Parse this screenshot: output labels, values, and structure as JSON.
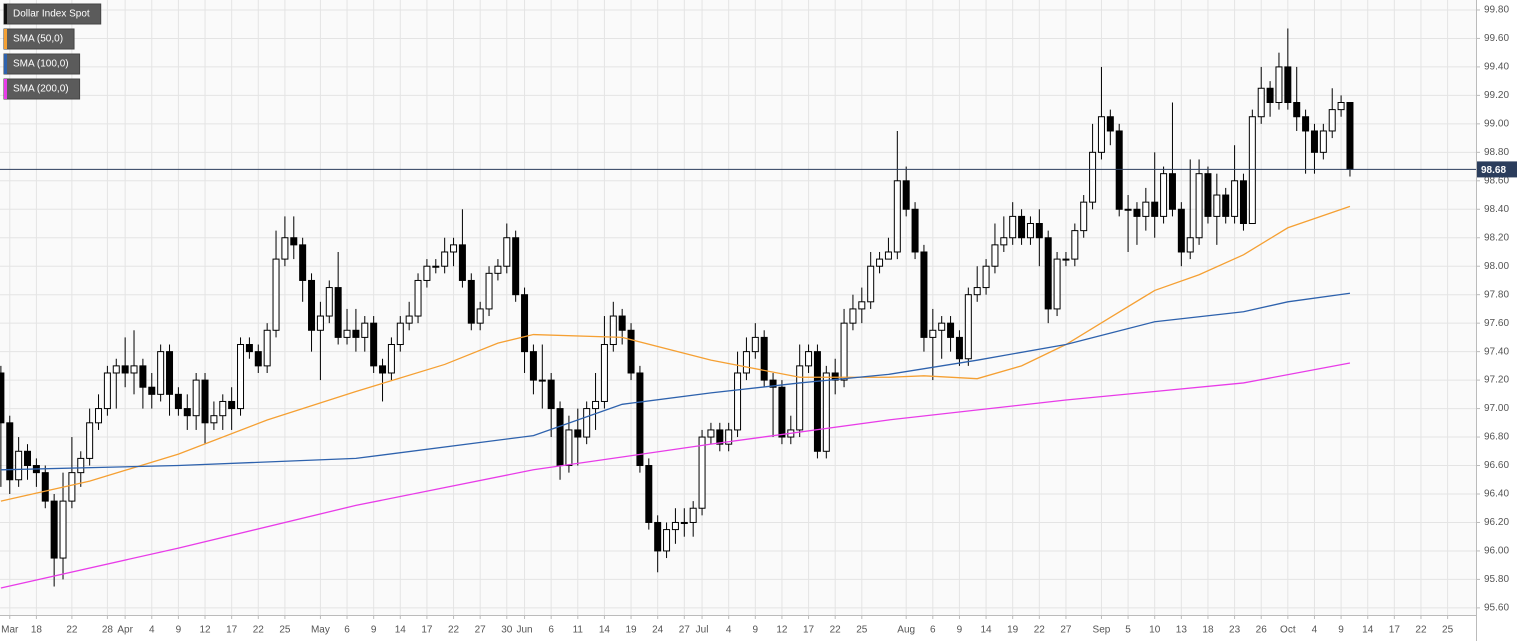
{
  "chart_data": {
    "type": "candlestick",
    "series": [
      {
        "name": "Dollar Index Spot",
        "color": "#000000",
        "open": [
          97.25,
          96.9,
          96.5,
          96.7,
          96.6,
          96.55,
          96.35,
          95.95,
          96.35,
          96.55,
          96.65,
          96.9,
          97.0,
          97.25,
          97.3,
          97.25,
          97.3,
          97.15,
          97.1,
          97.4,
          97.1,
          97.0,
          96.95,
          97.2,
          96.9,
          96.95,
          97.05,
          97.0,
          97.45,
          97.4,
          97.3,
          97.55,
          98.05,
          98.2,
          98.15,
          97.9,
          97.55,
          97.65,
          97.85,
          97.5,
          97.55,
          97.5,
          97.6,
          97.3,
          97.25,
          97.45,
          97.6,
          97.65,
          97.9,
          98.0,
          98.0,
          98.1,
          98.15,
          97.9,
          97.6,
          97.7,
          97.95,
          98.0,
          98.2,
          97.8,
          97.4,
          97.2,
          97.2,
          97.0,
          96.6,
          96.85,
          96.8,
          97.0,
          97.05,
          97.45,
          97.65,
          97.55,
          97.25,
          96.6,
          96.2,
          96.0,
          96.15,
          96.2,
          96.2,
          96.3,
          96.8,
          96.85,
          96.75,
          96.85,
          97.25,
          97.4,
          97.5,
          97.2,
          97.15,
          96.8,
          96.85,
          97.3,
          97.4,
          96.7,
          97.25,
          97.2,
          97.6,
          97.7,
          97.75,
          98.0,
          98.05,
          98.1,
          98.6,
          98.4,
          98.1,
          97.5,
          97.55,
          97.6,
          97.5,
          97.35,
          97.8,
          97.85,
          98.0,
          98.15,
          98.2,
          98.35,
          98.2,
          98.3,
          98.2,
          97.7,
          98.05,
          98.05,
          98.25,
          98.45,
          98.8,
          99.05,
          98.95,
          98.4,
          98.4,
          98.35,
          98.45,
          98.35,
          98.65,
          98.4,
          98.1,
          98.2,
          98.65,
          98.35,
          98.5,
          98.35,
          98.6,
          98.3,
          99.05,
          99.25,
          99.15,
          99.4,
          99.15,
          99.05,
          98.95,
          98.8,
          98.95,
          99.1,
          99.15
        ],
        "high": [
          97.3,
          96.95,
          96.8,
          96.75,
          96.65,
          96.6,
          96.4,
          96.55,
          96.8,
          96.7,
          97.0,
          97.1,
          97.3,
          97.35,
          97.5,
          97.55,
          97.35,
          97.25,
          97.45,
          97.45,
          97.15,
          97.1,
          97.25,
          97.25,
          97.05,
          97.1,
          97.15,
          97.5,
          97.5,
          97.45,
          97.6,
          98.25,
          98.35,
          98.35,
          98.2,
          97.95,
          97.75,
          97.9,
          98.1,
          97.7,
          97.7,
          97.65,
          97.65,
          97.35,
          97.5,
          97.65,
          97.75,
          97.95,
          98.05,
          98.05,
          98.2,
          98.2,
          98.4,
          97.95,
          97.75,
          98.0,
          98.05,
          98.3,
          98.25,
          97.85,
          97.45,
          97.45,
          97.25,
          97.05,
          96.95,
          97.0,
          97.05,
          97.25,
          97.65,
          97.75,
          97.7,
          97.6,
          97.3,
          96.65,
          96.25,
          96.2,
          96.3,
          96.3,
          96.35,
          96.85,
          96.9,
          96.9,
          96.9,
          97.4,
          97.5,
          97.6,
          97.55,
          97.25,
          97.2,
          96.95,
          97.45,
          97.45,
          97.45,
          97.3,
          97.35,
          97.7,
          97.8,
          97.85,
          98.1,
          98.1,
          98.2,
          98.95,
          98.7,
          98.45,
          98.15,
          97.7,
          97.65,
          97.65,
          97.55,
          97.85,
          98.0,
          98.05,
          98.3,
          98.35,
          98.45,
          98.4,
          98.35,
          98.4,
          98.25,
          98.1,
          98.1,
          98.3,
          98.5,
          99.0,
          99.4,
          99.1,
          99.0,
          98.5,
          98.45,
          98.55,
          98.8,
          98.7,
          99.15,
          98.45,
          98.75,
          98.75,
          98.7,
          98.65,
          98.55,
          98.85,
          98.65,
          99.1,
          99.4,
          99.3,
          99.5,
          99.67,
          99.4,
          99.1,
          99.0,
          99.0,
          99.25,
          99.2,
          99.15
        ],
        "low": [
          96.45,
          96.4,
          96.45,
          96.5,
          96.45,
          96.3,
          95.75,
          95.8,
          96.3,
          96.45,
          96.6,
          96.85,
          96.95,
          97.0,
          97.15,
          97.1,
          97.0,
          97.0,
          97.05,
          96.95,
          96.95,
          96.85,
          96.85,
          96.75,
          96.85,
          96.85,
          96.85,
          96.95,
          97.35,
          97.25,
          97.25,
          97.5,
          98.0,
          98.05,
          97.75,
          97.4,
          97.2,
          97.6,
          97.45,
          97.45,
          97.4,
          97.4,
          97.25,
          97.05,
          97.2,
          97.4,
          97.55,
          97.6,
          97.85,
          97.95,
          97.95,
          98.0,
          97.85,
          97.55,
          97.55,
          97.65,
          97.9,
          97.95,
          97.75,
          97.25,
          97.1,
          97.0,
          96.8,
          96.5,
          96.55,
          96.6,
          96.75,
          96.85,
          97.0,
          97.4,
          97.45,
          97.2,
          96.55,
          96.15,
          95.85,
          95.95,
          96.05,
          96.1,
          96.1,
          96.25,
          96.75,
          96.7,
          96.7,
          96.8,
          97.2,
          97.35,
          97.15,
          96.8,
          96.75,
          96.75,
          96.8,
          97.25,
          96.65,
          96.65,
          97.1,
          97.15,
          97.55,
          97.6,
          97.7,
          97.95,
          98.05,
          98.05,
          98.35,
          98.05,
          97.4,
          97.2,
          97.35,
          97.4,
          97.3,
          97.3,
          97.75,
          97.8,
          97.95,
          98.1,
          98.15,
          98.15,
          98.15,
          98.0,
          97.6,
          97.65,
          98.0,
          98.0,
          98.2,
          98.4,
          98.75,
          98.85,
          98.35,
          98.1,
          98.15,
          98.25,
          98.2,
          98.3,
          98.35,
          98.0,
          98.05,
          98.15,
          98.3,
          98.15,
          98.3,
          98.3,
          98.25,
          98.3,
          99.0,
          99.05,
          99.1,
          99.1,
          98.95,
          98.65,
          98.65,
          98.75,
          98.9,
          99.05,
          98.63
        ],
        "close": [
          96.9,
          96.5,
          96.7,
          96.6,
          96.55,
          96.35,
          95.95,
          96.35,
          96.55,
          96.65,
          96.9,
          97.0,
          97.25,
          97.3,
          97.25,
          97.3,
          97.15,
          97.1,
          97.4,
          97.1,
          97.0,
          96.95,
          97.2,
          96.9,
          96.95,
          97.05,
          97.0,
          97.45,
          97.4,
          97.3,
          97.55,
          98.05,
          98.2,
          98.15,
          97.9,
          97.55,
          97.65,
          97.85,
          97.5,
          97.55,
          97.5,
          97.6,
          97.3,
          97.25,
          97.45,
          97.6,
          97.65,
          97.9,
          98.0,
          98.0,
          98.1,
          98.15,
          97.9,
          97.6,
          97.7,
          97.95,
          98.0,
          98.2,
          97.8,
          97.4,
          97.2,
          97.2,
          97.0,
          96.6,
          96.85,
          96.8,
          97.0,
          97.05,
          97.45,
          97.65,
          97.55,
          97.25,
          96.6,
          96.2,
          96.0,
          96.15,
          96.2,
          96.2,
          96.3,
          96.8,
          96.85,
          96.75,
          96.85,
          97.25,
          97.4,
          97.5,
          97.2,
          97.15,
          96.8,
          96.85,
          97.3,
          97.4,
          96.7,
          97.25,
          97.2,
          97.6,
          97.7,
          97.75,
          98.0,
          98.05,
          98.1,
          98.6,
          98.4,
          98.1,
          97.5,
          97.55,
          97.6,
          97.5,
          97.35,
          97.8,
          97.85,
          98.0,
          98.15,
          98.2,
          98.35,
          98.2,
          98.3,
          98.2,
          97.7,
          98.05,
          98.05,
          98.25,
          98.45,
          98.8,
          99.05,
          98.95,
          98.4,
          98.4,
          98.35,
          98.45,
          98.35,
          98.65,
          98.4,
          98.1,
          98.2,
          98.65,
          98.35,
          98.5,
          98.35,
          98.6,
          98.3,
          99.05,
          99.25,
          99.15,
          99.4,
          99.15,
          99.05,
          98.95,
          98.8,
          98.95,
          99.1,
          99.15,
          98.68
        ]
      },
      {
        "name": "SMA (50,0)",
        "color": "#f5a033",
        "x": [
          0,
          10,
          20,
          30,
          40,
          50,
          56,
          60,
          70,
          80,
          90,
          100,
          104,
          110,
          115,
          120,
          125,
          130,
          135,
          140,
          145,
          152
        ],
        "values": [
          96.35,
          96.49,
          96.68,
          96.92,
          97.12,
          97.31,
          97.46,
          97.52,
          97.5,
          97.34,
          97.22,
          97.22,
          97.23,
          97.21,
          97.3,
          97.45,
          97.64,
          97.83,
          97.94,
          98.08,
          98.27,
          98.42
        ]
      },
      {
        "name": "SMA (100,0)",
        "color": "#2e62ad",
        "x": [
          0,
          20,
          40,
          60,
          70,
          80,
          90,
          100,
          110,
          120,
          125,
          130,
          140,
          145,
          152
        ],
        "values": [
          96.57,
          96.6,
          96.65,
          96.81,
          97.03,
          97.11,
          97.18,
          97.24,
          97.34,
          97.45,
          97.53,
          97.61,
          97.68,
          97.75,
          97.81
        ]
      },
      {
        "name": "SMA (200,0)",
        "color": "#e83ce8",
        "x": [
          0,
          20,
          40,
          60,
          80,
          100,
          120,
          140,
          152
        ],
        "values": [
          95.74,
          96.02,
          96.32,
          96.57,
          96.75,
          96.92,
          97.06,
          97.18,
          97.32
        ]
      }
    ],
    "last_price": 98.68,
    "xlim": [
      -0.1,
      166.2
    ],
    "ylim": [
      95.55,
      99.87
    ],
    "grid": true,
    "xticks": [
      {
        "value": 1,
        "label": "Mar"
      },
      {
        "value": 4,
        "label": "18"
      },
      {
        "value": 8,
        "label": "22"
      },
      {
        "value": 12,
        "label": "28"
      },
      {
        "value": 14,
        "label": "Apr"
      },
      {
        "value": 17,
        "label": "4"
      },
      {
        "value": 20,
        "label": "9"
      },
      {
        "value": 23,
        "label": "12"
      },
      {
        "value": 26,
        "label": "17"
      },
      {
        "value": 29,
        "label": "22"
      },
      {
        "value": 32,
        "label": "25"
      },
      {
        "value": 36,
        "label": "May"
      },
      {
        "value": 39,
        "label": "6"
      },
      {
        "value": 42,
        "label": "9"
      },
      {
        "value": 45,
        "label": "14"
      },
      {
        "value": 48,
        "label": "17"
      },
      {
        "value": 51,
        "label": "22"
      },
      {
        "value": 54,
        "label": "27"
      },
      {
        "value": 57,
        "label": "30"
      },
      {
        "value": 59,
        "label": "Jun"
      },
      {
        "value": 62,
        "label": "6"
      },
      {
        "value": 65,
        "label": "11"
      },
      {
        "value": 68,
        "label": "14"
      },
      {
        "value": 71,
        "label": "19"
      },
      {
        "value": 74,
        "label": "24"
      },
      {
        "value": 77,
        "label": "27"
      },
      {
        "value": 79,
        "label": "Jul"
      },
      {
        "value": 82,
        "label": "4"
      },
      {
        "value": 85,
        "label": "9"
      },
      {
        "value": 88,
        "label": "12"
      },
      {
        "value": 91,
        "label": "17"
      },
      {
        "value": 94,
        "label": "22"
      },
      {
        "value": 97,
        "label": "25"
      },
      {
        "value": 102,
        "label": "Aug"
      },
      {
        "value": 105,
        "label": "6"
      },
      {
        "value": 108,
        "label": "9"
      },
      {
        "value": 111,
        "label": "14"
      },
      {
        "value": 114,
        "label": "19"
      },
      {
        "value": 117,
        "label": "22"
      },
      {
        "value": 120,
        "label": "27"
      },
      {
        "value": 124,
        "label": "Sep"
      },
      {
        "value": 127,
        "label": "5"
      },
      {
        "value": 130,
        "label": "10"
      },
      {
        "value": 133,
        "label": "13"
      },
      {
        "value": 136,
        "label": "18"
      },
      {
        "value": 139,
        "label": "23"
      },
      {
        "value": 142,
        "label": "26"
      },
      {
        "value": 145,
        "label": "Oct"
      },
      {
        "value": 148,
        "label": "4"
      },
      {
        "value": 151,
        "label": "9"
      },
      {
        "value": 154,
        "label": "14"
      },
      {
        "value": 157,
        "label": "17"
      },
      {
        "value": 160,
        "label": "22"
      },
      {
        "value": 163,
        "label": "25"
      }
    ],
    "yticks": [
      {
        "value": 95.6,
        "label": "95.60"
      },
      {
        "value": 95.8,
        "label": "95.80"
      },
      {
        "value": 96.0,
        "label": "96.00"
      },
      {
        "value": 96.2,
        "label": "96.20"
      },
      {
        "value": 96.4,
        "label": "96.40"
      },
      {
        "value": 96.6,
        "label": "96.60"
      },
      {
        "value": 96.8,
        "label": "96.80"
      },
      {
        "value": 97.0,
        "label": "97.00"
      },
      {
        "value": 97.2,
        "label": "97.20"
      },
      {
        "value": 97.4,
        "label": "97.40"
      },
      {
        "value": 97.6,
        "label": "97.60"
      },
      {
        "value": 97.8,
        "label": "97.80"
      },
      {
        "value": 98.0,
        "label": "98.00"
      },
      {
        "value": 98.2,
        "label": "98.20"
      },
      {
        "value": 98.4,
        "label": "98.40"
      },
      {
        "value": 98.6,
        "label": "98.60"
      },
      {
        "value": 98.8,
        "label": "98.80"
      },
      {
        "value": 99.0,
        "label": "99.00"
      },
      {
        "value": 99.2,
        "label": "99.20"
      },
      {
        "value": 99.4,
        "label": "99.40"
      },
      {
        "value": 99.6,
        "label": "99.60"
      },
      {
        "value": 99.8,
        "label": "99.80"
      }
    ]
  }
}
